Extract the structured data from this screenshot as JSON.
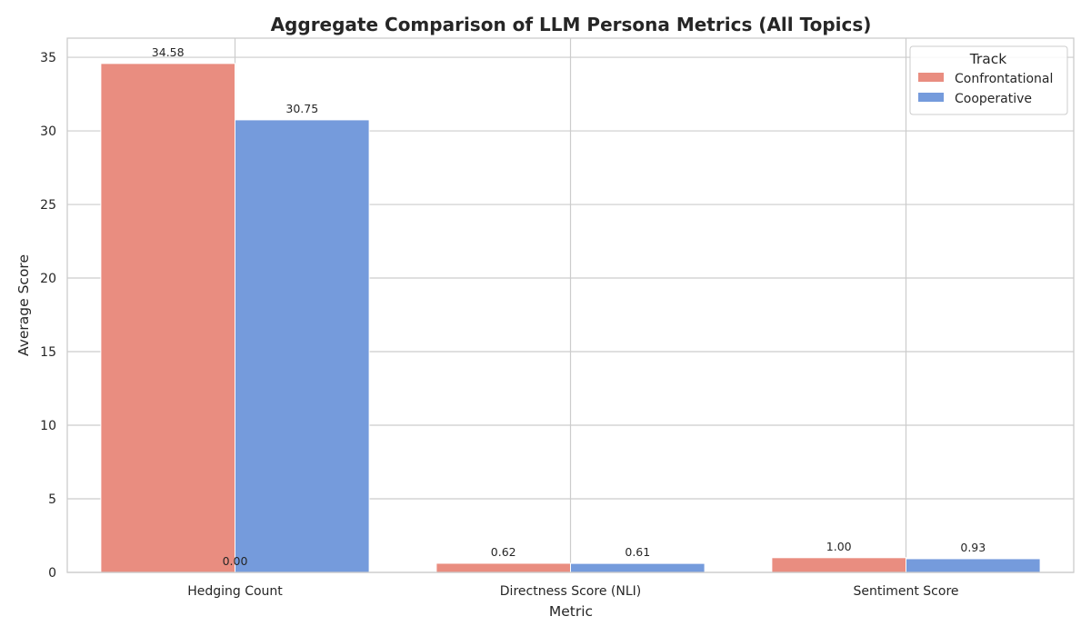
{
  "chart_data": {
    "type": "bar",
    "title": "Aggregate Comparison of LLM Persona Metrics (All Topics)",
    "xlabel": "Metric",
    "ylabel": "Average Score",
    "categories": [
      "Hedging Count",
      "Directness Score (NLI)",
      "Sentiment Score"
    ],
    "series": [
      {
        "name": "Confrontational",
        "values": [
          34.58,
          0.62,
          1.0
        ],
        "color": "#e98d80"
      },
      {
        "name": "Cooperative",
        "values": [
          30.75,
          0.61,
          0.93
        ],
        "color": "#759bdc"
      }
    ],
    "data_labels": [
      [
        "34.58",
        "0.62",
        "1.00"
      ],
      [
        "30.75",
        "0.61",
        "0.93"
      ]
    ],
    "extra_annotation": "0.00",
    "ylim": [
      0,
      36.3
    ],
    "yticks": [
      0,
      5,
      10,
      15,
      20,
      25,
      30,
      35
    ],
    "grid": true,
    "legend": {
      "title": "Track",
      "placement": "top-right"
    }
  }
}
